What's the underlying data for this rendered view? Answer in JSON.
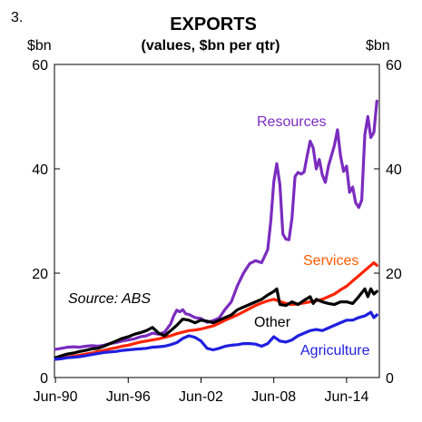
{
  "chart_data": {
    "type": "line",
    "panel_number": "3.",
    "title": "EXPORTS",
    "subtitle": "(values, $bn per qtr)",
    "ylabel_left": "$bn",
    "ylabel_right": "$bn",
    "ylim": [
      0,
      60
    ],
    "yticks": [
      0,
      20,
      40,
      60
    ],
    "xlim": [
      1990.42,
      2017.2
    ],
    "xticks": [
      {
        "label": "Jun-90",
        "value": 1990.5
      },
      {
        "label": "Jun-96",
        "value": 1996.5
      },
      {
        "label": "Jun-02",
        "value": 2002.5
      },
      {
        "label": "Jun-08",
        "value": 2008.5
      },
      {
        "label": "Jun-14",
        "value": 2014.5
      }
    ],
    "annotation": "Source: ABS",
    "series": [
      {
        "name": "Resources",
        "color": "#7B2CBF",
        "points": [
          [
            1990.5,
            5.4
          ],
          [
            1991.0,
            5.6
          ],
          [
            1991.5,
            5.8
          ],
          [
            1992.0,
            5.9
          ],
          [
            1992.5,
            5.8
          ],
          [
            1993.0,
            6.0
          ],
          [
            1993.5,
            6.1
          ],
          [
            1994.0,
            6.0
          ],
          [
            1994.5,
            6.2
          ],
          [
            1995.0,
            6.5
          ],
          [
            1995.5,
            6.7
          ],
          [
            1996.0,
            7.0
          ],
          [
            1996.5,
            7.2
          ],
          [
            1997.0,
            7.4
          ],
          [
            1997.5,
            7.8
          ],
          [
            1998.0,
            8.0
          ],
          [
            1998.5,
            8.5
          ],
          [
            1999.0,
            8.3
          ],
          [
            1999.5,
            8.7
          ],
          [
            2000.0,
            10.3
          ],
          [
            2000.25,
            11.8
          ],
          [
            2000.5,
            12.9
          ],
          [
            2000.75,
            12.6
          ],
          [
            2001.0,
            13.0
          ],
          [
            2001.25,
            12.2
          ],
          [
            2001.5,
            12.1
          ],
          [
            2002.0,
            11.5
          ],
          [
            2002.5,
            11.3
          ],
          [
            2003.0,
            10.6
          ],
          [
            2003.5,
            10.9
          ],
          [
            2004.0,
            11.4
          ],
          [
            2004.5,
            13.1
          ],
          [
            2005.0,
            14.5
          ],
          [
            2005.5,
            17.6
          ],
          [
            2006.0,
            20.0
          ],
          [
            2006.5,
            21.8
          ],
          [
            2007.0,
            22.4
          ],
          [
            2007.5,
            22.0
          ],
          [
            2008.0,
            24.5
          ],
          [
            2008.25,
            30.0
          ],
          [
            2008.5,
            37.5
          ],
          [
            2008.75,
            41.0
          ],
          [
            2009.0,
            37.0
          ],
          [
            2009.25,
            27.5
          ],
          [
            2009.5,
            26.5
          ],
          [
            2009.75,
            26.4
          ],
          [
            2010.0,
            30.5
          ],
          [
            2010.25,
            38.5
          ],
          [
            2010.5,
            39.3
          ],
          [
            2010.75,
            39.0
          ],
          [
            2011.0,
            39.4
          ],
          [
            2011.25,
            42.5
          ],
          [
            2011.5,
            45.3
          ],
          [
            2011.75,
            44.0
          ],
          [
            2012.0,
            40.0
          ],
          [
            2012.25,
            41.8
          ],
          [
            2012.5,
            38.8
          ],
          [
            2012.75,
            37.4
          ],
          [
            2013.0,
            40.5
          ],
          [
            2013.25,
            42.5
          ],
          [
            2013.5,
            44.5
          ],
          [
            2013.75,
            47.5
          ],
          [
            2014.0,
            42.5
          ],
          [
            2014.25,
            39.5
          ],
          [
            2014.5,
            40.5
          ],
          [
            2014.75,
            35.5
          ],
          [
            2015.0,
            36.5
          ],
          [
            2015.25,
            33.5
          ],
          [
            2015.5,
            32.6
          ],
          [
            2015.75,
            34.0
          ],
          [
            2016.0,
            46.5
          ],
          [
            2016.25,
            50.0
          ],
          [
            2016.5,
            46.0
          ],
          [
            2016.75,
            47.0
          ],
          [
            2017.0,
            53.0
          ]
        ]
      },
      {
        "name": "Services",
        "color": "#FF2400",
        "points": [
          [
            1990.5,
            3.5
          ],
          [
            1991.0,
            3.7
          ],
          [
            1991.5,
            3.9
          ],
          [
            1992.0,
            4.1
          ],
          [
            1992.5,
            4.3
          ],
          [
            1993.0,
            4.5
          ],
          [
            1993.5,
            4.7
          ],
          [
            1994.0,
            5.0
          ],
          [
            1994.5,
            5.2
          ],
          [
            1995.0,
            5.5
          ],
          [
            1995.5,
            5.7
          ],
          [
            1996.0,
            6.0
          ],
          [
            1996.5,
            6.2
          ],
          [
            1997.0,
            6.5
          ],
          [
            1997.5,
            6.8
          ],
          [
            1998.0,
            7.0
          ],
          [
            1998.5,
            7.2
          ],
          [
            1999.0,
            7.4
          ],
          [
            1999.5,
            7.7
          ],
          [
            2000.0,
            8.0
          ],
          [
            2000.5,
            8.4
          ],
          [
            2001.0,
            8.7
          ],
          [
            2001.5,
            9.0
          ],
          [
            2002.0,
            9.1
          ],
          [
            2002.5,
            9.3
          ],
          [
            2003.0,
            9.6
          ],
          [
            2003.5,
            9.9
          ],
          [
            2004.0,
            10.4
          ],
          [
            2004.5,
            11.0
          ],
          [
            2005.0,
            11.5
          ],
          [
            2005.5,
            12.0
          ],
          [
            2006.0,
            12.6
          ],
          [
            2006.5,
            13.2
          ],
          [
            2007.0,
            13.8
          ],
          [
            2007.5,
            14.3
          ],
          [
            2008.0,
            14.7
          ],
          [
            2008.5,
            15.0
          ],
          [
            2009.0,
            14.6
          ],
          [
            2009.5,
            14.2
          ],
          [
            2010.0,
            14.0
          ],
          [
            2010.5,
            14.1
          ],
          [
            2011.0,
            14.3
          ],
          [
            2011.5,
            14.5
          ],
          [
            2012.0,
            14.7
          ],
          [
            2012.5,
            15.0
          ],
          [
            2013.0,
            15.5
          ],
          [
            2013.5,
            16.0
          ],
          [
            2014.0,
            16.8
          ],
          [
            2014.5,
            17.5
          ],
          [
            2015.0,
            18.5
          ],
          [
            2015.5,
            19.5
          ],
          [
            2016.0,
            20.5
          ],
          [
            2016.5,
            21.5
          ],
          [
            2016.75,
            22.0
          ],
          [
            2017.0,
            21.5
          ]
        ]
      },
      {
        "name": "Other",
        "color": "#000000",
        "points": [
          [
            1990.5,
            3.8
          ],
          [
            1991.0,
            4.2
          ],
          [
            1991.5,
            4.5
          ],
          [
            1992.0,
            4.7
          ],
          [
            1992.5,
            5.0
          ],
          [
            1993.0,
            5.2
          ],
          [
            1993.5,
            5.5
          ],
          [
            1994.0,
            5.6
          ],
          [
            1994.5,
            6.0
          ],
          [
            1995.0,
            6.5
          ],
          [
            1995.5,
            7.0
          ],
          [
            1996.0,
            7.5
          ],
          [
            1996.5,
            7.8
          ],
          [
            1997.0,
            8.3
          ],
          [
            1997.5,
            8.6
          ],
          [
            1998.0,
            9.0
          ],
          [
            1998.5,
            9.6
          ],
          [
            1999.0,
            8.5
          ],
          [
            1999.5,
            8.0
          ],
          [
            2000.0,
            9.0
          ],
          [
            2000.5,
            10.0
          ],
          [
            2001.0,
            11.2
          ],
          [
            2001.5,
            11.0
          ],
          [
            2002.0,
            10.5
          ],
          [
            2002.5,
            11.0
          ],
          [
            2003.0,
            10.8
          ],
          [
            2003.5,
            10.5
          ],
          [
            2004.0,
            11.0
          ],
          [
            2004.5,
            11.5
          ],
          [
            2005.0,
            12.0
          ],
          [
            2005.5,
            13.0
          ],
          [
            2006.0,
            13.5
          ],
          [
            2006.5,
            14.0
          ],
          [
            2007.0,
            14.5
          ],
          [
            2007.5,
            15.0
          ],
          [
            2008.0,
            15.8
          ],
          [
            2008.5,
            16.5
          ],
          [
            2008.75,
            17.0
          ],
          [
            2009.0,
            14.0
          ],
          [
            2009.5,
            13.8
          ],
          [
            2010.0,
            14.5
          ],
          [
            2010.5,
            14.0
          ],
          [
            2011.0,
            14.8
          ],
          [
            2011.5,
            15.5
          ],
          [
            2011.75,
            14.2
          ],
          [
            2012.0,
            15.0
          ],
          [
            2012.5,
            14.5
          ],
          [
            2013.0,
            14.2
          ],
          [
            2013.5,
            14.0
          ],
          [
            2014.0,
            14.5
          ],
          [
            2014.5,
            14.5
          ],
          [
            2015.0,
            14.2
          ],
          [
            2015.5,
            15.5
          ],
          [
            2016.0,
            17.0
          ],
          [
            2016.25,
            15.5
          ],
          [
            2016.5,
            17.0
          ],
          [
            2016.75,
            16.0
          ],
          [
            2017.0,
            16.5
          ]
        ]
      },
      {
        "name": "Agriculture",
        "color": "#1F1FE0",
        "points": [
          [
            1990.5,
            3.5
          ],
          [
            1991.0,
            3.6
          ],
          [
            1991.5,
            3.8
          ],
          [
            1992.0,
            3.9
          ],
          [
            1992.5,
            4.0
          ],
          [
            1993.0,
            4.2
          ],
          [
            1993.5,
            4.4
          ],
          [
            1994.0,
            4.6
          ],
          [
            1994.5,
            4.8
          ],
          [
            1995.0,
            4.9
          ],
          [
            1995.5,
            5.0
          ],
          [
            1996.0,
            5.2
          ],
          [
            1996.5,
            5.3
          ],
          [
            1997.0,
            5.4
          ],
          [
            1997.5,
            5.5
          ],
          [
            1998.0,
            5.6
          ],
          [
            1998.5,
            5.8
          ],
          [
            1999.0,
            5.9
          ],
          [
            1999.5,
            6.0
          ],
          [
            2000.0,
            6.3
          ],
          [
            2000.5,
            6.7
          ],
          [
            2001.0,
            7.5
          ],
          [
            2001.5,
            8.0
          ],
          [
            2002.0,
            7.7
          ],
          [
            2002.5,
            7.0
          ],
          [
            2003.0,
            5.6
          ],
          [
            2003.5,
            5.3
          ],
          [
            2004.0,
            5.6
          ],
          [
            2004.5,
            6.0
          ],
          [
            2005.0,
            6.2
          ],
          [
            2005.5,
            6.3
          ],
          [
            2006.0,
            6.5
          ],
          [
            2006.5,
            6.5
          ],
          [
            2007.0,
            6.4
          ],
          [
            2007.5,
            6.0
          ],
          [
            2008.0,
            6.5
          ],
          [
            2008.5,
            7.8
          ],
          [
            2009.0,
            7.0
          ],
          [
            2009.5,
            6.8
          ],
          [
            2010.0,
            7.2
          ],
          [
            2010.5,
            8.0
          ],
          [
            2011.0,
            8.5
          ],
          [
            2011.5,
            9.0
          ],
          [
            2012.0,
            9.2
          ],
          [
            2012.5,
            9.0
          ],
          [
            2013.0,
            9.5
          ],
          [
            2013.5,
            10.0
          ],
          [
            2014.0,
            10.5
          ],
          [
            2014.5,
            11.0
          ],
          [
            2015.0,
            11.0
          ],
          [
            2015.5,
            11.5
          ],
          [
            2016.0,
            11.8
          ],
          [
            2016.5,
            12.5
          ],
          [
            2016.75,
            11.5
          ],
          [
            2017.0,
            12.0
          ]
        ]
      }
    ]
  }
}
